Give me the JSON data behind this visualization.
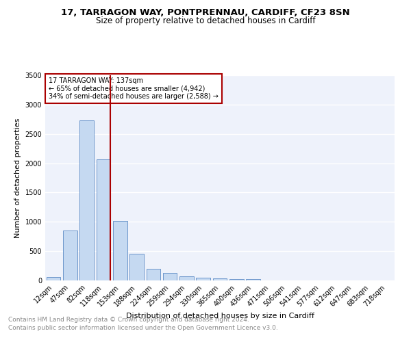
{
  "title1": "17, TARRAGON WAY, PONTPRENNAU, CARDIFF, CF23 8SN",
  "title2": "Size of property relative to detached houses in Cardiff",
  "xlabel": "Distribution of detached houses by size in Cardiff",
  "ylabel": "Number of detached properties",
  "categories": [
    "12sqm",
    "47sqm",
    "82sqm",
    "118sqm",
    "153sqm",
    "188sqm",
    "224sqm",
    "259sqm",
    "294sqm",
    "330sqm",
    "365sqm",
    "400sqm",
    "436sqm",
    "471sqm",
    "506sqm",
    "541sqm",
    "577sqm",
    "612sqm",
    "647sqm",
    "683sqm",
    "718sqm"
  ],
  "values": [
    60,
    850,
    2730,
    2070,
    1010,
    450,
    200,
    130,
    70,
    45,
    30,
    25,
    20,
    5,
    3,
    2,
    1,
    0,
    0,
    0,
    0
  ],
  "bar_color": "#c5d9f1",
  "bar_edge_color": "#5b8ac5",
  "ref_line_x": 3.42,
  "ref_line_label": "17 TARRAGON WAY: 137sqm",
  "annotation_line1": "← 65% of detached houses are smaller (4,942)",
  "annotation_line2": "34% of semi-detached houses are larger (2,588) →",
  "annotation_box_color": "#ffffff",
  "annotation_box_edge": "#aa0000",
  "ref_line_color": "#aa0000",
  "ylim": [
    0,
    3500
  ],
  "yticks": [
    0,
    500,
    1000,
    1500,
    2000,
    2500,
    3000,
    3500
  ],
  "footer1": "Contains HM Land Registry data © Crown copyright and database right 2024.",
  "footer2": "Contains public sector information licensed under the Open Government Licence v3.0.",
  "bg_color": "#eef2fb",
  "grid_color": "#ffffff",
  "title1_fontsize": 9.5,
  "title2_fontsize": 8.5,
  "xlabel_fontsize": 8,
  "ylabel_fontsize": 8,
  "tick_fontsize": 7,
  "annot_fontsize": 7,
  "footer_fontsize": 6.5
}
